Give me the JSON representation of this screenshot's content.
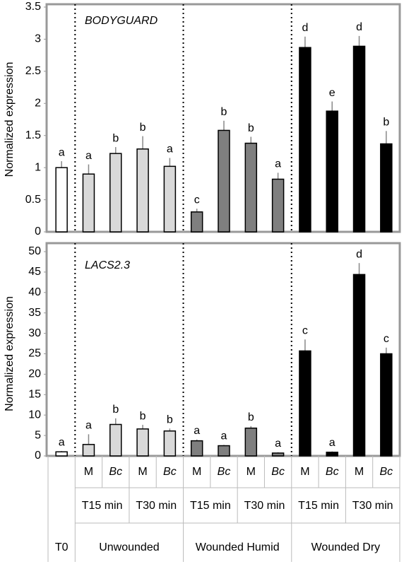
{
  "chart_data": [
    {
      "type": "bar",
      "ylabel": "Normalized expression",
      "gene": "BODYGUARD",
      "values": [
        1.0,
        0.9,
        1.22,
        1.29,
        1.02,
        0.31,
        1.58,
        1.38,
        0.82,
        2.87,
        1.88,
        2.89,
        1.37
      ],
      "errors": [
        0.1,
        0.15,
        0.1,
        0.2,
        0.13,
        0.05,
        0.15,
        0.1,
        0.1,
        0.17,
        0.15,
        0.16,
        0.2
      ],
      "letters": [
        "a",
        "a",
        "b",
        "b",
        "a",
        "c",
        "b",
        "b",
        "a",
        "d",
        "e",
        "d",
        "b"
      ],
      "colors": [
        "#ffffff",
        "#d9d9d9",
        "#d9d9d9",
        "#d9d9d9",
        "#d9d9d9",
        "#7f7f7f",
        "#7f7f7f",
        "#7f7f7f",
        "#7f7f7f",
        "#000000",
        "#000000",
        "#000000",
        "#000000"
      ],
      "ylim": [
        0,
        3.5
      ],
      "yticks": [
        0,
        0.5,
        1,
        1.5,
        2,
        2.5,
        3,
        3.5
      ]
    },
    {
      "type": "bar",
      "ylabel": "Normalized expression",
      "gene": "LACS2.3",
      "values": [
        1.0,
        2.8,
        7.7,
        6.6,
        6.1,
        3.7,
        2.5,
        6.8,
        0.7,
        25.7,
        0.9,
        44.4,
        25.0
      ],
      "errors": [
        0.2,
        2.5,
        1.5,
        1.0,
        0.6,
        0.3,
        0.2,
        0.5,
        0.2,
        2.8,
        0.2,
        2.8,
        1.5
      ],
      "letters": [
        "a",
        "a",
        "b",
        "b",
        "b",
        "a",
        "a",
        "b",
        "a",
        "c",
        "a",
        "d",
        "c"
      ],
      "colors": [
        "#ffffff",
        "#d9d9d9",
        "#d9d9d9",
        "#d9d9d9",
        "#d9d9d9",
        "#7f7f7f",
        "#7f7f7f",
        "#7f7f7f",
        "#7f7f7f",
        "#000000",
        "#000000",
        "#000000",
        "#000000"
      ],
      "ylim": [
        0,
        50
      ],
      "yticks": [
        0,
        5,
        10,
        15,
        20,
        25,
        30,
        35,
        40,
        45,
        50
      ]
    }
  ],
  "x_axis": {
    "treatments": [
      "M",
      "Bc",
      "M",
      "Bc",
      "M",
      "Bc",
      "M",
      "Bc",
      "M",
      "Bc",
      "M",
      "Bc"
    ],
    "times": [
      "T15 min",
      "T30 min",
      "T15 min",
      "T30 min",
      "T15 min",
      "T30 min"
    ],
    "groups": [
      "T0",
      "Unwounded",
      "Wounded Humid",
      "Wounded Dry"
    ]
  }
}
